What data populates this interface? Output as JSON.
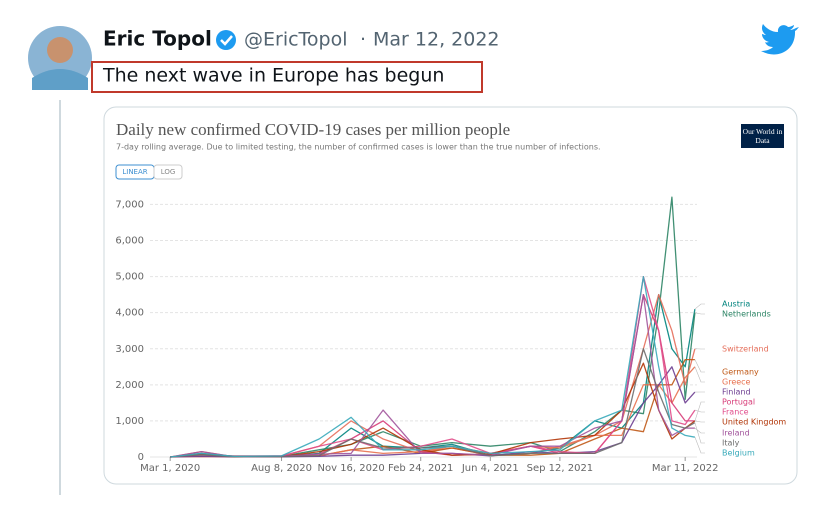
{
  "tweet": {
    "author": "Eric Topol",
    "handle": "@EricTopol",
    "separator": "·",
    "date": "Mar 12, 2022",
    "text": "The next wave in Europe has begun"
  },
  "chart_data": {
    "type": "line",
    "title": "Daily new confirmed COVID-19 cases per million people",
    "subtitle": "7-day rolling average. Due to limited testing, the number of confirmed cases is lower than the true number of infections.",
    "logo": "Our World in Data",
    "scale_buttons": [
      "LINEAR",
      "LOG"
    ],
    "x": [
      "Mar 1, 2020",
      "Apr 15, 2020",
      "Jun 1, 2020",
      "Aug 8, 2020",
      "Oct 1, 2020",
      "Nov 16, 2020",
      "Jan 1, 2021",
      "Feb 24, 2021",
      "Apr 10, 2021",
      "Jun 4, 2021",
      "Aug 1, 2021",
      "Sep 12, 2021",
      "Nov 1, 2021",
      "Dec 10, 2021",
      "Jan 10, 2022",
      "Feb 1, 2022",
      "Feb 20, 2022",
      "Mar 11, 2022",
      "Mar 25, 2022"
    ],
    "xlim": [
      "Feb 1, 2020",
      "Mar 28, 2022"
    ],
    "xticks": [
      "Mar 1, 2020",
      "Aug 8, 2020",
      "Nov 16, 2020",
      "Feb 24, 2021",
      "Jun 4, 2021",
      "Sep 12, 2021",
      "Mar 11, 2022"
    ],
    "ylim": [
      0,
      7400
    ],
    "yticks": [
      0,
      {
        "value": 1000,
        "label": "1,000"
      },
      {
        "value": 2000,
        "label": "2,000"
      },
      {
        "value": 3000,
        "label": "3,000"
      },
      {
        "value": 4000,
        "label": "4,000"
      },
      {
        "value": 5000,
        "label": "5,000"
      },
      {
        "value": 6000,
        "label": "6,000"
      },
      {
        "value": 7000,
        "label": "7,000"
      }
    ],
    "grid": true,
    "series": [
      {
        "name": "Austria",
        "color": "#00847e",
        "values": [
          0,
          100,
          5,
          20,
          100,
          800,
          300,
          250,
          350,
          50,
          100,
          250,
          1000,
          800,
          1500,
          4500,
          3000,
          2500,
          4100
        ]
      },
      {
        "name": "Netherlands",
        "color": "#2c8465",
        "values": [
          0,
          60,
          10,
          20,
          200,
          350,
          700,
          300,
          400,
          300,
          400,
          150,
          700,
          1300,
          1200,
          4000,
          7200,
          1600,
          4000
        ]
      },
      {
        "name": "Switzerland",
        "color": "#e56e5a",
        "values": [
          0,
          150,
          5,
          20,
          300,
          1000,
          500,
          150,
          250,
          50,
          100,
          300,
          600,
          1000,
          3000,
          4500,
          3500,
          2000,
          3000
        ]
      },
      {
        "name": "Germany",
        "color": "#c05917",
        "values": [
          0,
          80,
          5,
          10,
          30,
          200,
          300,
          100,
          250,
          50,
          50,
          100,
          500,
          800,
          700,
          2000,
          2000,
          2700,
          2700
        ]
      },
      {
        "name": "Greece",
        "color": "#e8714f",
        "values": [
          0,
          10,
          0,
          20,
          40,
          200,
          100,
          150,
          300,
          100,
          300,
          250,
          600,
          600,
          2000,
          2000,
          1500,
          2200,
          2500
        ]
      },
      {
        "name": "Finland",
        "color": "#6d3e91",
        "values": [
          0,
          20,
          5,
          5,
          20,
          50,
          50,
          100,
          100,
          30,
          150,
          100,
          150,
          400,
          1500,
          2000,
          2500,
          1500,
          1800
        ]
      },
      {
        "name": "Portugal",
        "color": "#d73c78",
        "values": [
          0,
          60,
          30,
          30,
          80,
          500,
          1000,
          150,
          50,
          80,
          300,
          100,
          100,
          1000,
          4500,
          3500,
          1500,
          1000,
          1000
        ]
      },
      {
        "name": "France",
        "color": "#e14c8a",
        "values": [
          0,
          80,
          5,
          30,
          300,
          500,
          200,
          300,
          500,
          100,
          300,
          150,
          100,
          1000,
          5000,
          3500,
          1000,
          900,
          1300
        ]
      },
      {
        "name": "United Kingdom",
        "color": "#b13507",
        "values": [
          0,
          80,
          20,
          10,
          150,
          350,
          800,
          200,
          50,
          80,
          400,
          500,
          600,
          1300,
          2600,
          1300,
          500,
          800,
          1000
        ]
      },
      {
        "name": "Ireland",
        "color": "#a2559c",
        "values": [
          0,
          150,
          5,
          20,
          80,
          100,
          1300,
          100,
          100,
          50,
          300,
          300,
          800,
          1000,
          4500,
          1300,
          600,
          800,
          800
        ]
      },
      {
        "name": "Italy",
        "color": "#6d6d6d",
        "values": [
          0,
          60,
          5,
          10,
          40,
          500,
          250,
          250,
          300,
          30,
          100,
          100,
          100,
          400,
          3000,
          1800,
          900,
          800,
          950
        ]
      },
      {
        "name": "Belgium",
        "color": "#38aaba",
        "values": [
          0,
          100,
          20,
          30,
          500,
          1100,
          200,
          200,
          300,
          100,
          150,
          200,
          1000,
          1300,
          5000,
          2500,
          800,
          600,
          550
        ]
      }
    ]
  }
}
